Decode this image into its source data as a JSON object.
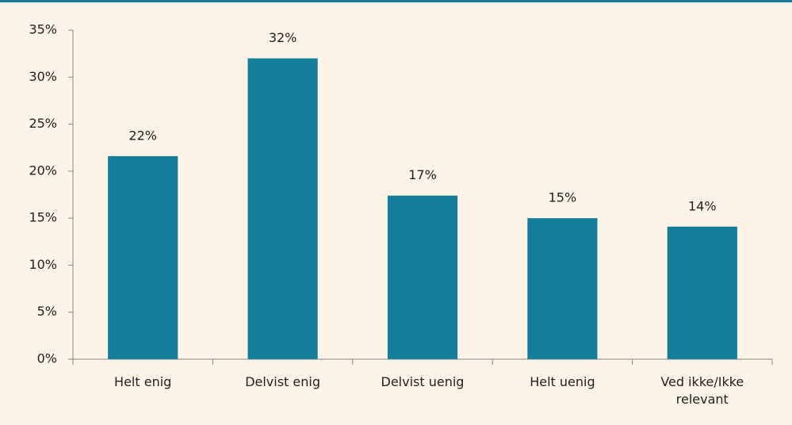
{
  "chart_data": {
    "type": "bar",
    "categories": [
      "Helt enig",
      "Delvist enig",
      "Delvist uenig",
      "Helt uenig",
      "Ved ikke/Ikke relevant"
    ],
    "values": [
      21.6,
      32,
      17.4,
      15,
      14.1
    ],
    "value_labels": [
      "22%",
      "32%",
      "17%",
      "15%",
      "14%"
    ],
    "color": "#147f9b",
    "ylim": [
      0,
      35
    ],
    "yticks": [
      {
        "value": 0,
        "label": "0%"
      },
      {
        "value": 5,
        "label": "5%"
      },
      {
        "value": 10,
        "label": "10%"
      },
      {
        "value": 15,
        "label": "15%"
      },
      {
        "value": 20,
        "label": "20%"
      },
      {
        "value": 25,
        "label": "25%"
      },
      {
        "value": 30,
        "label": "30%"
      },
      {
        "value": 35,
        "label": "35%"
      }
    ],
    "grid": false
  }
}
